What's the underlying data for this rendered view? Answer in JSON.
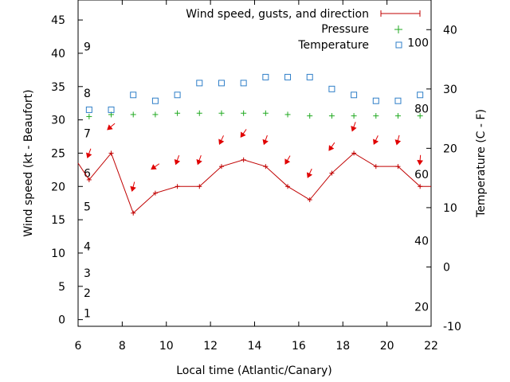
{
  "chart_data": {
    "type": "line",
    "xlabel": "Local time (Atlantic/Canary)",
    "ylabel": "Wind speed (kt - Beaufort)",
    "y2label": "Temperature (C - F)",
    "xlim": [
      6,
      22
    ],
    "ylim": [
      -1,
      48
    ],
    "y2lim": [
      -10,
      45
    ],
    "x_ticks": [
      6,
      8,
      10,
      12,
      14,
      16,
      18,
      20,
      22
    ],
    "y_ticks": [
      0,
      5,
      10,
      15,
      20,
      25,
      30,
      35,
      40,
      45
    ],
    "y2_ticks": [
      -10,
      0,
      10,
      20,
      30,
      40
    ],
    "beaufort_labels": [
      {
        "label": "1",
        "kt": 1
      },
      {
        "label": "2",
        "kt": 4
      },
      {
        "label": "3",
        "kt": 7
      },
      {
        "label": "4",
        "kt": 11
      },
      {
        "label": "5",
        "kt": 17
      },
      {
        "label": "6",
        "kt": 22
      },
      {
        "label": "7",
        "kt": 28
      },
      {
        "label": "8",
        "kt": 34
      },
      {
        "label": "9",
        "kt": 41
      }
    ],
    "fahrenheit_labels": [
      {
        "label": "20",
        "c": -6.7
      },
      {
        "label": "40",
        "c": 4.4
      },
      {
        "label": "60",
        "c": 15.6
      },
      {
        "label": "80",
        "c": 26.7
      },
      {
        "label": "100",
        "c": 37.8
      }
    ],
    "legend": {
      "placement": "top-right",
      "entries": [
        "Wind speed, gusts, and direction",
        "Pressure",
        "Temperature"
      ]
    },
    "colors": {
      "wind": "#c00000",
      "arrow": "#e00000",
      "pressure": "#22aa22",
      "temperature": "#2f7fc8"
    },
    "series": [
      {
        "name": "Wind speed, gusts, and direction",
        "x": [
          6,
          6.5,
          7.5,
          8.5,
          9.5,
          10.5,
          11.5,
          12.5,
          13.5,
          14.5,
          15.5,
          16.5,
          17.5,
          18.5,
          19.5,
          20.5,
          21.5,
          22
        ],
        "y": [
          23.5,
          21,
          25,
          16,
          19,
          20,
          20,
          23,
          24,
          23,
          20,
          18,
          22,
          25,
          23,
          23,
          20,
          20
        ]
      },
      {
        "name": "Wind direction arrows",
        "x": [
          6.5,
          7.5,
          8.5,
          9.5,
          10.5,
          11.5,
          12.5,
          13.5,
          14.5,
          15.5,
          16.5,
          17.5,
          18.5,
          19.5,
          20.5,
          21.5
        ],
        "y": [
          25,
          29,
          20,
          23,
          24,
          24,
          27,
          28,
          27,
          24,
          22,
          26,
          29,
          27,
          27,
          24
        ],
        "dir": [
          200,
          230,
          195,
          235,
          200,
          200,
          205,
          215,
          200,
          210,
          205,
          215,
          200,
          205,
          195,
          185
        ]
      },
      {
        "name": "Pressure",
        "x": [
          6.5,
          7.5,
          8.5,
          9.5,
          10.5,
          11.5,
          12.5,
          13.5,
          14.5,
          15.5,
          16.5,
          17.5,
          18.5,
          19.5,
          20.5,
          21.5
        ],
        "y": [
          30.5,
          30.8,
          30.8,
          30.8,
          31,
          31,
          31,
          31,
          31,
          30.8,
          30.6,
          30.6,
          30.6,
          30.6,
          30.6,
          30.6
        ]
      },
      {
        "name": "Temperature",
        "x": [
          6.5,
          7.5,
          8.5,
          9.5,
          10.5,
          11.5,
          12.5,
          13.5,
          14.5,
          15.5,
          16.5,
          17.5,
          18.5,
          19.5,
          20.5,
          21.5
        ],
        "y": [
          26.5,
          26.5,
          29,
          28,
          29,
          31,
          31,
          31,
          32,
          32,
          32,
          30,
          29,
          28,
          28,
          29
        ]
      }
    ]
  }
}
